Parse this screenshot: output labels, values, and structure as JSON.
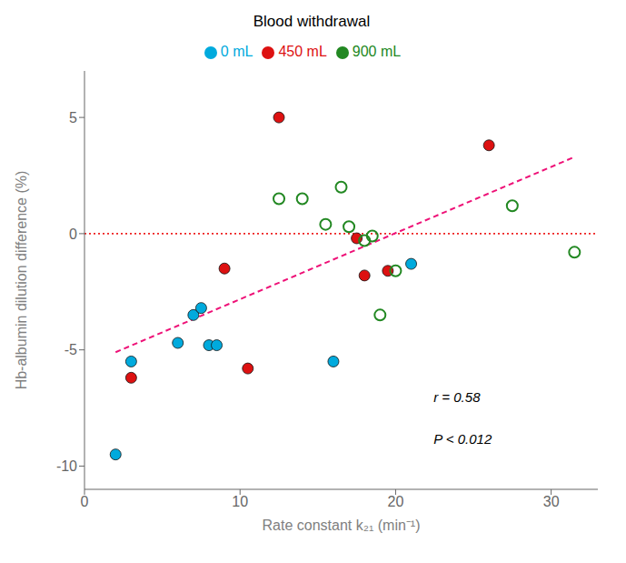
{
  "chart_data": {
    "type": "scatter",
    "title": "Blood withdrawal",
    "x_label": "Rate constant k₂₁ (min⁻¹)",
    "y_label": "Hb-albumin dilution difference (%)",
    "xlim": [
      0,
      33
    ],
    "ylim": [
      -11,
      7
    ],
    "xticks": [
      0,
      10,
      20,
      30
    ],
    "yticks": [
      -10,
      -5,
      0,
      5
    ],
    "grid": false,
    "legend": "top",
    "series": [
      {
        "name": "0 mL",
        "color": "#00AADD",
        "marker": "circle",
        "x": [
          2.0,
          3.0,
          6.0,
          7.0,
          7.5,
          8.0,
          8.5,
          16.0,
          21.0
        ],
        "values": [
          -9.5,
          -5.5,
          -4.7,
          -3.5,
          -3.2,
          -4.8,
          -4.8,
          -5.5,
          -1.3
        ]
      },
      {
        "name": "450 mL",
        "color": "#DD1111",
        "marker": "circle",
        "x": [
          3.0,
          9.0,
          10.5,
          12.5,
          17.5,
          18.0,
          19.5,
          26.0
        ],
        "values": [
          -6.2,
          -1.5,
          -5.8,
          5.0,
          -0.2,
          -1.8,
          -1.6,
          3.8
        ]
      },
      {
        "name": "900 mL",
        "color": "#228822",
        "marker": "ring",
        "x": [
          12.5,
          14.0,
          15.5,
          16.5,
          17.0,
          18.0,
          18.5,
          19.0,
          20.0,
          27.5,
          31.5
        ],
        "values": [
          1.5,
          1.5,
          0.4,
          2.0,
          0.3,
          -0.3,
          -0.1,
          -3.5,
          -1.6,
          1.2,
          -0.8
        ]
      },
      {
        "type": "line",
        "color": "#EE1177",
        "line_style": "dashed",
        "x": [
          2.0,
          31.5
        ],
        "values": [
          -5.1,
          3.3
        ]
      }
    ],
    "reference_lines": [
      {
        "y": 0,
        "color": "#EE2222",
        "line_style": "dotted"
      }
    ],
    "annotations": [
      "r = 0.58",
      "P < 0.012"
    ]
  }
}
